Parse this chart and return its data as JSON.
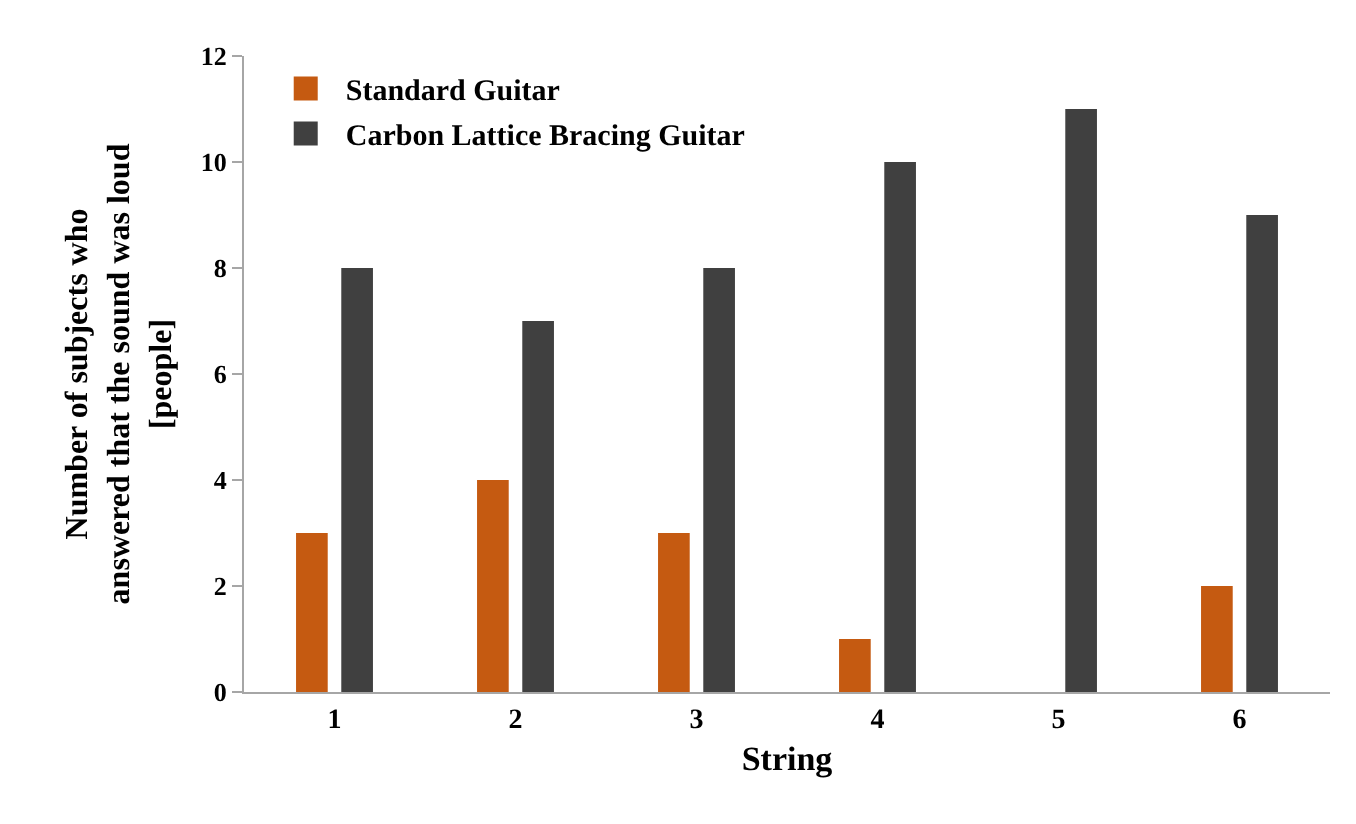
{
  "chart_data": {
    "type": "bar",
    "xlabel": "String",
    "ylabel": "Number of subjects who\nanswered that the sound was loud\n[people]",
    "categories": [
      "1",
      "2",
      "3",
      "4",
      "5",
      "6"
    ],
    "series": [
      {
        "name": "Standard Guitar",
        "color": "#c55a11",
        "values": [
          3,
          4,
          3,
          1,
          0,
          2
        ]
      },
      {
        "name": "Carbon Lattice Bracing Guitar",
        "color": "#404040",
        "values": [
          8,
          7,
          8,
          10,
          11,
          9
        ]
      }
    ],
    "ylim": [
      0,
      12
    ],
    "yticks": [
      0,
      2,
      4,
      6,
      8,
      10,
      12
    ],
    "grid": false,
    "legend": "top left"
  }
}
